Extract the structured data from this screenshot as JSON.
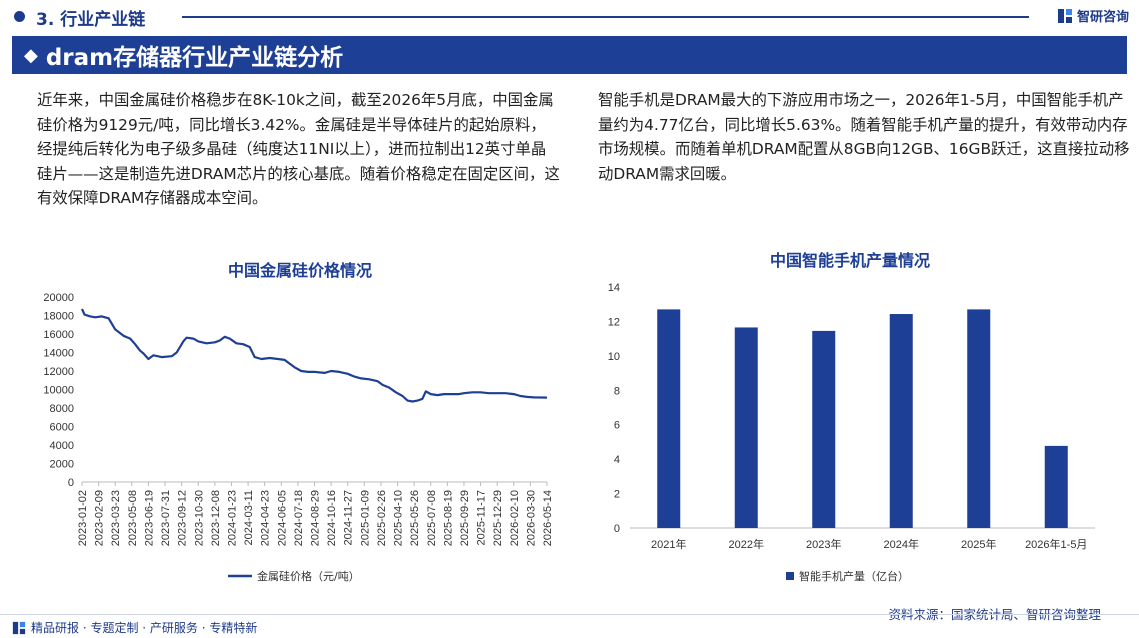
{
  "header": {
    "section": "3. 行业产业链",
    "brand": "智研咨询",
    "title": "dram存储器行业产业链分析"
  },
  "paragraphs": {
    "left": "近年来，中国金属硅价格稳步在8K-10k之间，截至2026年5月底，中国金属硅价格为9129元/吨，同比增长3.42%。金属硅是半导体硅片的起始原料，经提纯后转化为电子级多晶硅（纯度达11NI以上），进而拉制出12英寸单晶硅片——这是制造先进DRAM芯片的核心基底。随着价格稳定在固定区间，这有效保障DRAM存储器成本空间。",
    "right": "智能手机是DRAM最大的下游应用市场之一，2026年1-5月，中国智能手机产量约为4.77亿台，同比增长5.63%。随着智能手机产量的提升，有效带动内存市场规模。而随着单机DRAM配置从8GB向12GB、16GB跃迁，这直接拉动移动DRAM需求回暖。"
  },
  "chart_data": [
    {
      "type": "line",
      "title": "中国金属硅价格情况",
      "ylim": [
        0,
        20000
      ],
      "yticks": [
        0,
        2000,
        4000,
        6000,
        8000,
        10000,
        12000,
        14000,
        16000,
        18000,
        20000
      ],
      "xticks": [
        "2023-01-02",
        "2023-02-09",
        "2023-03-23",
        "2023-05-08",
        "2023-06-19",
        "2023-07-31",
        "2023-09-12",
        "2023-10-30",
        "2023-12-08",
        "2024-01-23",
        "2024-03-11",
        "2024-04-23",
        "2024-06-05",
        "2024-07-18",
        "2024-08-29",
        "2024-10-16",
        "2024-11-27",
        "2025-01-09",
        "2025-02-26",
        "2025-04-10",
        "2025-05-26",
        "2025-07-08",
        "2025-08-19",
        "2025-09-29",
        "2025-11-17",
        "2025-12-29",
        "2026-02-10",
        "2026-03-30",
        "2026-05-14"
      ],
      "series": [
        {
          "name": "金属硅价格（元/吨）",
          "color": "#1e3f96",
          "points": [
            [
              0,
              18700
            ],
            [
              0.15,
              18100
            ],
            [
              0.5,
              17900
            ],
            [
              0.8,
              17800
            ],
            [
              1.2,
              17900
            ],
            [
              1.6,
              17700
            ],
            [
              2.0,
              16500
            ],
            [
              2.5,
              15800
            ],
            [
              2.9,
              15500
            ],
            [
              3.2,
              14900
            ],
            [
              3.5,
              14200
            ],
            [
              3.7,
              13900
            ],
            [
              4.0,
              13300
            ],
            [
              4.3,
              13700
            ],
            [
              4.8,
              13500
            ],
            [
              5.4,
              13600
            ],
            [
              5.7,
              14000
            ],
            [
              6.1,
              15200
            ],
            [
              6.3,
              15600
            ],
            [
              6.7,
              15500
            ],
            [
              7.0,
              15200
            ],
            [
              7.5,
              15000
            ],
            [
              8.0,
              15100
            ],
            [
              8.3,
              15300
            ],
            [
              8.6,
              15700
            ],
            [
              8.9,
              15500
            ],
            [
              9.3,
              15000
            ],
            [
              9.7,
              14900
            ],
            [
              10.1,
              14600
            ],
            [
              10.4,
              13500
            ],
            [
              10.8,
              13300
            ],
            [
              11.3,
              13400
            ],
            [
              11.8,
              13300
            ],
            [
              12.2,
              13200
            ],
            [
              12.5,
              12800
            ],
            [
              12.8,
              12400
            ],
            [
              13.2,
              12000
            ],
            [
              13.6,
              11900
            ],
            [
              14.0,
              11900
            ],
            [
              14.6,
              11800
            ],
            [
              15.0,
              12000
            ],
            [
              15.5,
              11900
            ],
            [
              16.0,
              11700
            ],
            [
              16.4,
              11400
            ],
            [
              16.8,
              11200
            ],
            [
              17.3,
              11100
            ],
            [
              17.8,
              10900
            ],
            [
              18.1,
              10500
            ],
            [
              18.5,
              10200
            ],
            [
              18.9,
              9700
            ],
            [
              19.3,
              9300
            ],
            [
              19.6,
              8800
            ],
            [
              19.9,
              8700
            ],
            [
              20.2,
              8800
            ],
            [
              20.5,
              9000
            ],
            [
              20.7,
              9800
            ],
            [
              21.0,
              9500
            ],
            [
              21.4,
              9400
            ],
            [
              21.8,
              9500
            ],
            [
              22.2,
              9500
            ],
            [
              22.7,
              9500
            ],
            [
              23.0,
              9600
            ],
            [
              23.5,
              9700
            ],
            [
              24.0,
              9700
            ],
            [
              24.5,
              9600
            ],
            [
              25.0,
              9600
            ],
            [
              25.5,
              9600
            ],
            [
              26.0,
              9500
            ],
            [
              26.4,
              9300
            ],
            [
              26.8,
              9200
            ],
            [
              27.2,
              9150
            ],
            [
              27.7,
              9130
            ],
            [
              28.0,
              9129
            ]
          ]
        }
      ]
    },
    {
      "type": "bar",
      "title": "中国智能手机产量情况",
      "ylim": [
        0,
        14
      ],
      "yticks": [
        0,
        2,
        4,
        6,
        8,
        10,
        12,
        14
      ],
      "categories": [
        "2021年",
        "2022年",
        "2023年",
        "2024年",
        "2025年",
        "2026年1-5月"
      ],
      "series": [
        {
          "name": "智能手机产量（亿台）",
          "color": "#1e3f96",
          "values": [
            12.7,
            11.65,
            11.45,
            12.43,
            12.7,
            4.77
          ]
        }
      ]
    }
  ],
  "footer": {
    "tagline": "精品研报 · 专题定制 · 产研服务 · 专精特新",
    "source": "资料来源：国家统计局、智研咨询整理"
  },
  "colors": {
    "brand": "#1e3f96",
    "accent": "#1e3a8a"
  }
}
